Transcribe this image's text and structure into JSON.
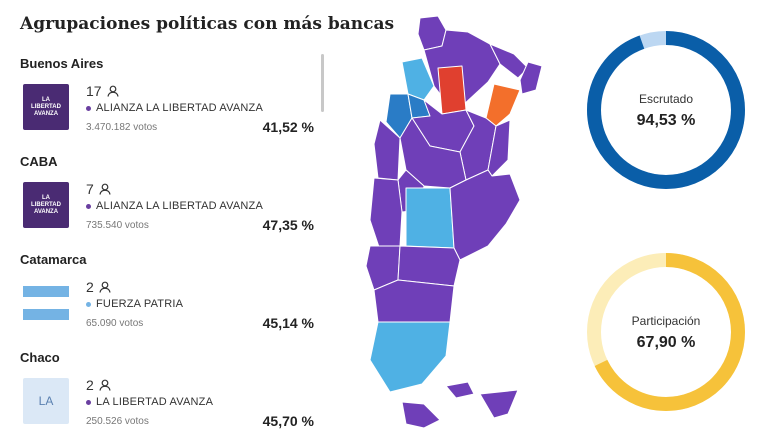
{
  "title": "Agrupaciones políticas con más bancas",
  "provinces": [
    {
      "name": "Buenos Aires",
      "seats": "17",
      "party": "ALIANZA LA LIBERTAD AVANZA",
      "party_color": "#6a3fa0",
      "votes": "3.470.182 votos",
      "pct": "41,52 %",
      "logo_type": "lla",
      "logo_text": "LA LIBERTAD AVANZA"
    },
    {
      "name": "CABA",
      "seats": "7",
      "party": "ALIANZA LA LIBERTAD AVANZA",
      "party_color": "#6a3fa0",
      "votes": "735.540 votos",
      "pct": "47,35 %",
      "logo_type": "lla",
      "logo_text": "LA LIBERTAD AVANZA"
    },
    {
      "name": "Catamarca",
      "seats": "2",
      "party": "FUERZA PATRIA",
      "party_color": "#74b3e4",
      "votes": "65.090 votos",
      "pct": "45,14 %",
      "logo_type": "flag",
      "logo_text": ""
    },
    {
      "name": "Chaco",
      "seats": "2",
      "party": "LA LIBERTAD AVANZA",
      "party_color": "#6a3fa0",
      "votes": "250.526 votos",
      "pct": "45,70 %",
      "logo_type": "la",
      "logo_text": "LA"
    }
  ],
  "escrutado": {
    "label": "Escrutado",
    "value": "94,53 %",
    "fraction": 0.9453,
    "color": "#0a5ea8",
    "track": "#bcd7f2"
  },
  "participacion": {
    "label": "Participación",
    "value": "67,90 %",
    "fraction": 0.679,
    "color": "#f6c23a",
    "track": "#fcedb8"
  },
  "map_colors": {
    "purple": "#6f3fb8",
    "light_blue": "#4fb1e4",
    "blue": "#2a7cc6",
    "red": "#e0402f",
    "orange": "#f36f2b"
  }
}
